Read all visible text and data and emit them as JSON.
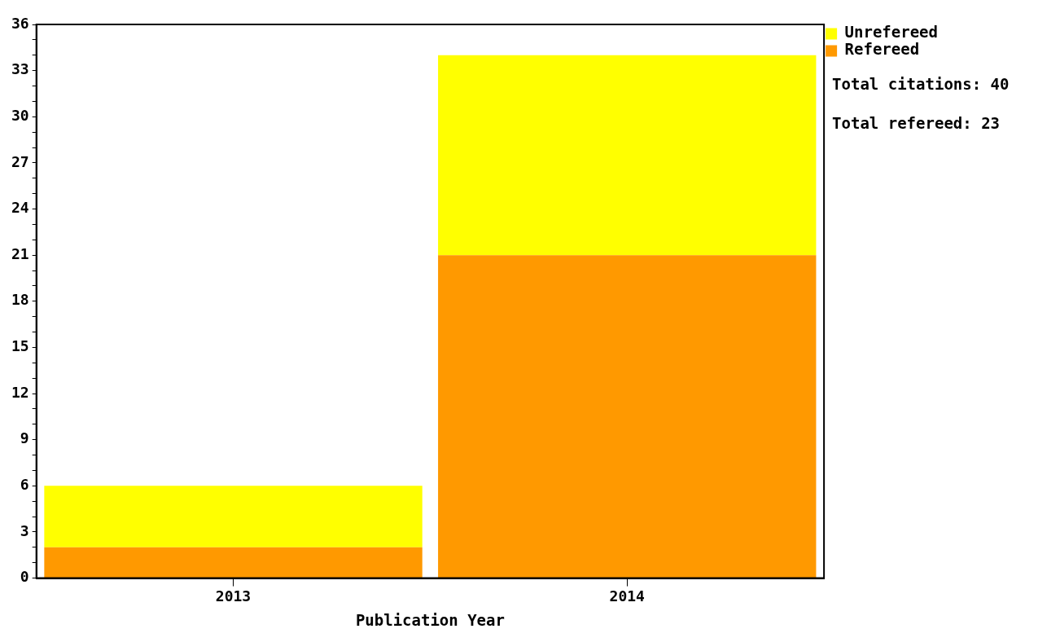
{
  "chart_data": {
    "type": "bar",
    "stacked": true,
    "xlabel": "Publication Year",
    "categories": [
      "2013",
      "2014"
    ],
    "series": [
      {
        "name": "Refereed",
        "color": "#ff9900",
        "values": [
          2,
          21
        ]
      },
      {
        "name": "Unrefereed",
        "color": "#ffff00",
        "values": [
          4,
          13
        ]
      }
    ],
    "ylim": [
      0,
      36
    ],
    "yticks": [
      0,
      {
        "value": 1,
        "label": null
      },
      {
        "value": 2,
        "label": null
      },
      3,
      {
        "value": 4,
        "label": null
      },
      {
        "value": 5,
        "label": null
      },
      6,
      {
        "value": 7,
        "label": null
      },
      {
        "value": 8,
        "label": null
      },
      9,
      {
        "value": 10,
        "label": null
      },
      {
        "value": 11,
        "label": null
      },
      12,
      {
        "value": 13,
        "label": null
      },
      {
        "value": 14,
        "label": null
      },
      15,
      {
        "value": 16,
        "label": null
      },
      {
        "value": 17,
        "label": null
      },
      18,
      {
        "value": 19,
        "label": null
      },
      {
        "value": 20,
        "label": null
      },
      21,
      {
        "value": 22,
        "label": null
      },
      {
        "value": 23,
        "label": null
      },
      24,
      {
        "value": 25,
        "label": null
      },
      {
        "value": 26,
        "label": null
      },
      27,
      {
        "value": 28,
        "label": null
      },
      {
        "value": 29,
        "label": null
      },
      30,
      {
        "value": 31,
        "label": null
      },
      {
        "value": 32,
        "label": null
      },
      33,
      {
        "value": 34,
        "label": null
      },
      {
        "value": 35,
        "label": null
      },
      36
    ],
    "grid": false,
    "legend": "top right",
    "annotations": [
      "Total citations: 40",
      "Total refereed: 23"
    ]
  }
}
